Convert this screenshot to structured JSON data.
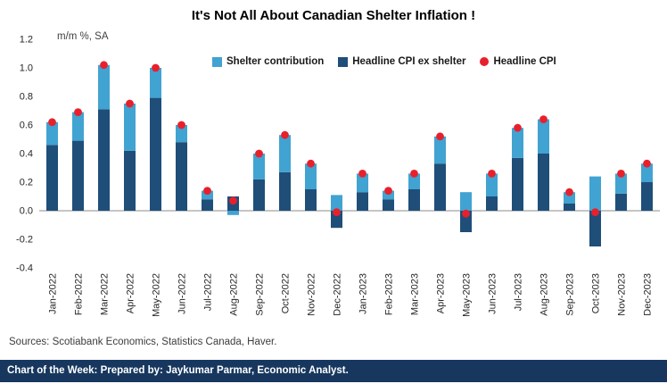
{
  "sources": "Sources: Scotiabank Economics, Statistics Canada, Haver.",
  "footer": "Chart of the Week: Prepared by: Jaykumar Parmar, Economic Analyst.",
  "colors": {
    "shelter": "#41A3D1",
    "ex_shelter": "#1F4E79",
    "headline_dot": "#E8202C",
    "footer_bg": "#17375E",
    "axis_text": "#262626",
    "zero_line": "#8C8C8C"
  },
  "chart_data": {
    "type": "bar",
    "stacked": true,
    "title": "It's Not All About Canadian Shelter Inflation !",
    "ylabel": "m/m %, SA",
    "xlabel": "",
    "ylim": [
      -0.4,
      1.2
    ],
    "ytick_step": 0.2,
    "grid": false,
    "legend_position": "top",
    "stack_order": [
      1,
      0
    ],
    "categories": [
      "Jan-2022",
      "Feb-2022",
      "Mar-2022",
      "Apr-2022",
      "May-2022",
      "Jun-2022",
      "Jul-2022",
      "Aug-2022",
      "Sep-2022",
      "Oct-2022",
      "Nov-2022",
      "Dec-2022",
      "Jan-2023",
      "Feb-2023",
      "Mar-2023",
      "Apr-2023",
      "May-2023",
      "Jun-2023",
      "Jul-2023",
      "Aug-2023",
      "Sep-2023",
      "Oct-2023",
      "Nov-2023",
      "Dec-2023"
    ],
    "series": [
      {
        "name": "Shelter contribution",
        "type": "bar",
        "color_key": "shelter",
        "values": [
          0.16,
          0.2,
          0.31,
          0.33,
          0.21,
          0.12,
          0.06,
          -0.03,
          0.18,
          0.26,
          0.18,
          0.11,
          0.13,
          0.06,
          0.11,
          0.19,
          0.13,
          0.16,
          0.21,
          0.24,
          0.08,
          0.24,
          0.14,
          0.13
        ]
      },
      {
        "name": "Headline CPI ex shelter",
        "type": "bar",
        "color_key": "ex_shelter",
        "values": [
          0.46,
          0.49,
          0.71,
          0.42,
          0.79,
          0.48,
          0.08,
          0.1,
          0.22,
          0.27,
          0.15,
          -0.12,
          0.13,
          0.08,
          0.15,
          0.33,
          -0.15,
          0.1,
          0.37,
          0.4,
          0.05,
          -0.25,
          0.12,
          0.2
        ]
      },
      {
        "name": "Headline CPI",
        "type": "scatter",
        "color_key": "headline_dot",
        "values": [
          0.62,
          0.69,
          1.02,
          0.75,
          1.0,
          0.6,
          0.14,
          0.07,
          0.4,
          0.53,
          0.33,
          -0.01,
          0.26,
          0.14,
          0.26,
          0.52,
          -0.02,
          0.26,
          0.58,
          0.64,
          0.13,
          -0.01,
          0.26,
          0.33
        ]
      }
    ]
  }
}
